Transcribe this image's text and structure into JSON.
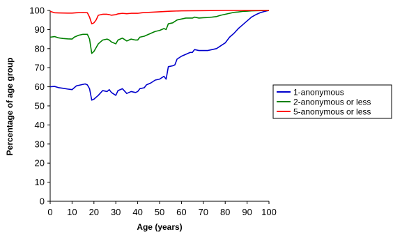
{
  "chart_data": {
    "type": "line",
    "title": "",
    "xlabel": "Age (years)",
    "ylabel": "Percentage of age group",
    "xlim": [
      0,
      100
    ],
    "ylim": [
      0,
      100
    ],
    "x_ticks": [
      0,
      10,
      20,
      30,
      40,
      50,
      60,
      70,
      80,
      90,
      100
    ],
    "y_ticks": [
      0,
      10,
      20,
      30,
      40,
      50,
      60,
      70,
      80,
      90,
      100
    ],
    "grid": false,
    "legend_position": "right",
    "series": [
      {
        "name": "1-anonymous",
        "color": "#0000cc",
        "points": [
          [
            0,
            60
          ],
          [
            2,
            60.2
          ],
          [
            4,
            59.5
          ],
          [
            6,
            59.2
          ],
          [
            8,
            58.8
          ],
          [
            10,
            58.5
          ],
          [
            11,
            59.5
          ],
          [
            12,
            60.5
          ],
          [
            14,
            61
          ],
          [
            16,
            61.5
          ],
          [
            17,
            61
          ],
          [
            18,
            59
          ],
          [
            19,
            53
          ],
          [
            20,
            53.5
          ],
          [
            22,
            55.5
          ],
          [
            24,
            58
          ],
          [
            26,
            57.5
          ],
          [
            27,
            58.5
          ],
          [
            28,
            57
          ],
          [
            30,
            55.5
          ],
          [
            31,
            58
          ],
          [
            33,
            59
          ],
          [
            35,
            56.5
          ],
          [
            37,
            57.5
          ],
          [
            39,
            57
          ],
          [
            40,
            57.5
          ],
          [
            41,
            59
          ],
          [
            43,
            59.5
          ],
          [
            44,
            61
          ],
          [
            46,
            62
          ],
          [
            48,
            63.5
          ],
          [
            50,
            64
          ],
          [
            52,
            65.5
          ],
          [
            53,
            64
          ],
          [
            54,
            70.5
          ],
          [
            56,
            71
          ],
          [
            57,
            71.5
          ],
          [
            58,
            74.5
          ],
          [
            60,
            76
          ],
          [
            62,
            77
          ],
          [
            64,
            78
          ],
          [
            65,
            78
          ],
          [
            66,
            79.5
          ],
          [
            68,
            79
          ],
          [
            70,
            79
          ],
          [
            72,
            79
          ],
          [
            74,
            79.5
          ],
          [
            76,
            80
          ],
          [
            78,
            81.5
          ],
          [
            80,
            83
          ],
          [
            82,
            86
          ],
          [
            84,
            88
          ],
          [
            86,
            90.5
          ],
          [
            88,
            92.5
          ],
          [
            90,
            94.5
          ],
          [
            92,
            96.5
          ],
          [
            94,
            97.8
          ],
          [
            96,
            98.8
          ],
          [
            98,
            99.5
          ],
          [
            100,
            100
          ]
        ]
      },
      {
        "name": "2-anonymous or less",
        "color": "#008000",
        "points": [
          [
            0,
            86
          ],
          [
            2,
            86.3
          ],
          [
            4,
            85.6
          ],
          [
            6,
            85.3
          ],
          [
            8,
            85.1
          ],
          [
            10,
            85
          ],
          [
            11,
            86
          ],
          [
            13,
            87
          ],
          [
            15,
            87.5
          ],
          [
            17,
            87.5
          ],
          [
            18,
            85
          ],
          [
            19,
            77.5
          ],
          [
            20,
            78.5
          ],
          [
            22,
            82.5
          ],
          [
            24,
            84.5
          ],
          [
            26,
            85
          ],
          [
            27,
            84.5
          ],
          [
            28,
            83.5
          ],
          [
            30,
            82.5
          ],
          [
            31,
            84.5
          ],
          [
            33,
            85.5
          ],
          [
            35,
            84
          ],
          [
            37,
            85
          ],
          [
            39,
            84.5
          ],
          [
            40,
            84.5
          ],
          [
            41,
            86
          ],
          [
            43,
            86.5
          ],
          [
            44,
            87
          ],
          [
            46,
            88
          ],
          [
            48,
            89
          ],
          [
            50,
            89.5
          ],
          [
            52,
            90.5
          ],
          [
            53,
            90
          ],
          [
            54,
            93
          ],
          [
            56,
            93.5
          ],
          [
            58,
            95
          ],
          [
            60,
            95.5
          ],
          [
            62,
            96
          ],
          [
            65,
            96
          ],
          [
            66,
            96.5
          ],
          [
            68,
            96
          ],
          [
            70,
            96.2
          ],
          [
            72,
            96.3
          ],
          [
            74,
            96.5
          ],
          [
            76,
            96.8
          ],
          [
            78,
            97.5
          ],
          [
            80,
            98
          ],
          [
            82,
            98.5
          ],
          [
            84,
            99
          ],
          [
            86,
            99.2
          ],
          [
            88,
            99.5
          ],
          [
            90,
            99.6
          ],
          [
            92,
            99.8
          ],
          [
            95,
            99.9
          ],
          [
            100,
            100
          ]
        ]
      },
      {
        "name": "5-anonymous or less",
        "color": "#ff0000",
        "points": [
          [
            0,
            99.5
          ],
          [
            2,
            98.8
          ],
          [
            4,
            98.7
          ],
          [
            8,
            98.6
          ],
          [
            10,
            98.6
          ],
          [
            12,
            98.8
          ],
          [
            15,
            98.9
          ],
          [
            17,
            98.8
          ],
          [
            18,
            96.5
          ],
          [
            19,
            93
          ],
          [
            20,
            93.5
          ],
          [
            21,
            95
          ],
          [
            22,
            97.5
          ],
          [
            24,
            98
          ],
          [
            26,
            98
          ],
          [
            27,
            97.8
          ],
          [
            28,
            97.5
          ],
          [
            30,
            97.8
          ],
          [
            31,
            98.2
          ],
          [
            33,
            98.5
          ],
          [
            35,
            98.3
          ],
          [
            37,
            98.5
          ],
          [
            40,
            98.5
          ],
          [
            42,
            98.8
          ],
          [
            45,
            99
          ],
          [
            50,
            99.3
          ],
          [
            55,
            99.6
          ],
          [
            60,
            99.8
          ],
          [
            70,
            99.9
          ],
          [
            80,
            100
          ],
          [
            90,
            100
          ],
          [
            100,
            100
          ]
        ]
      }
    ]
  }
}
